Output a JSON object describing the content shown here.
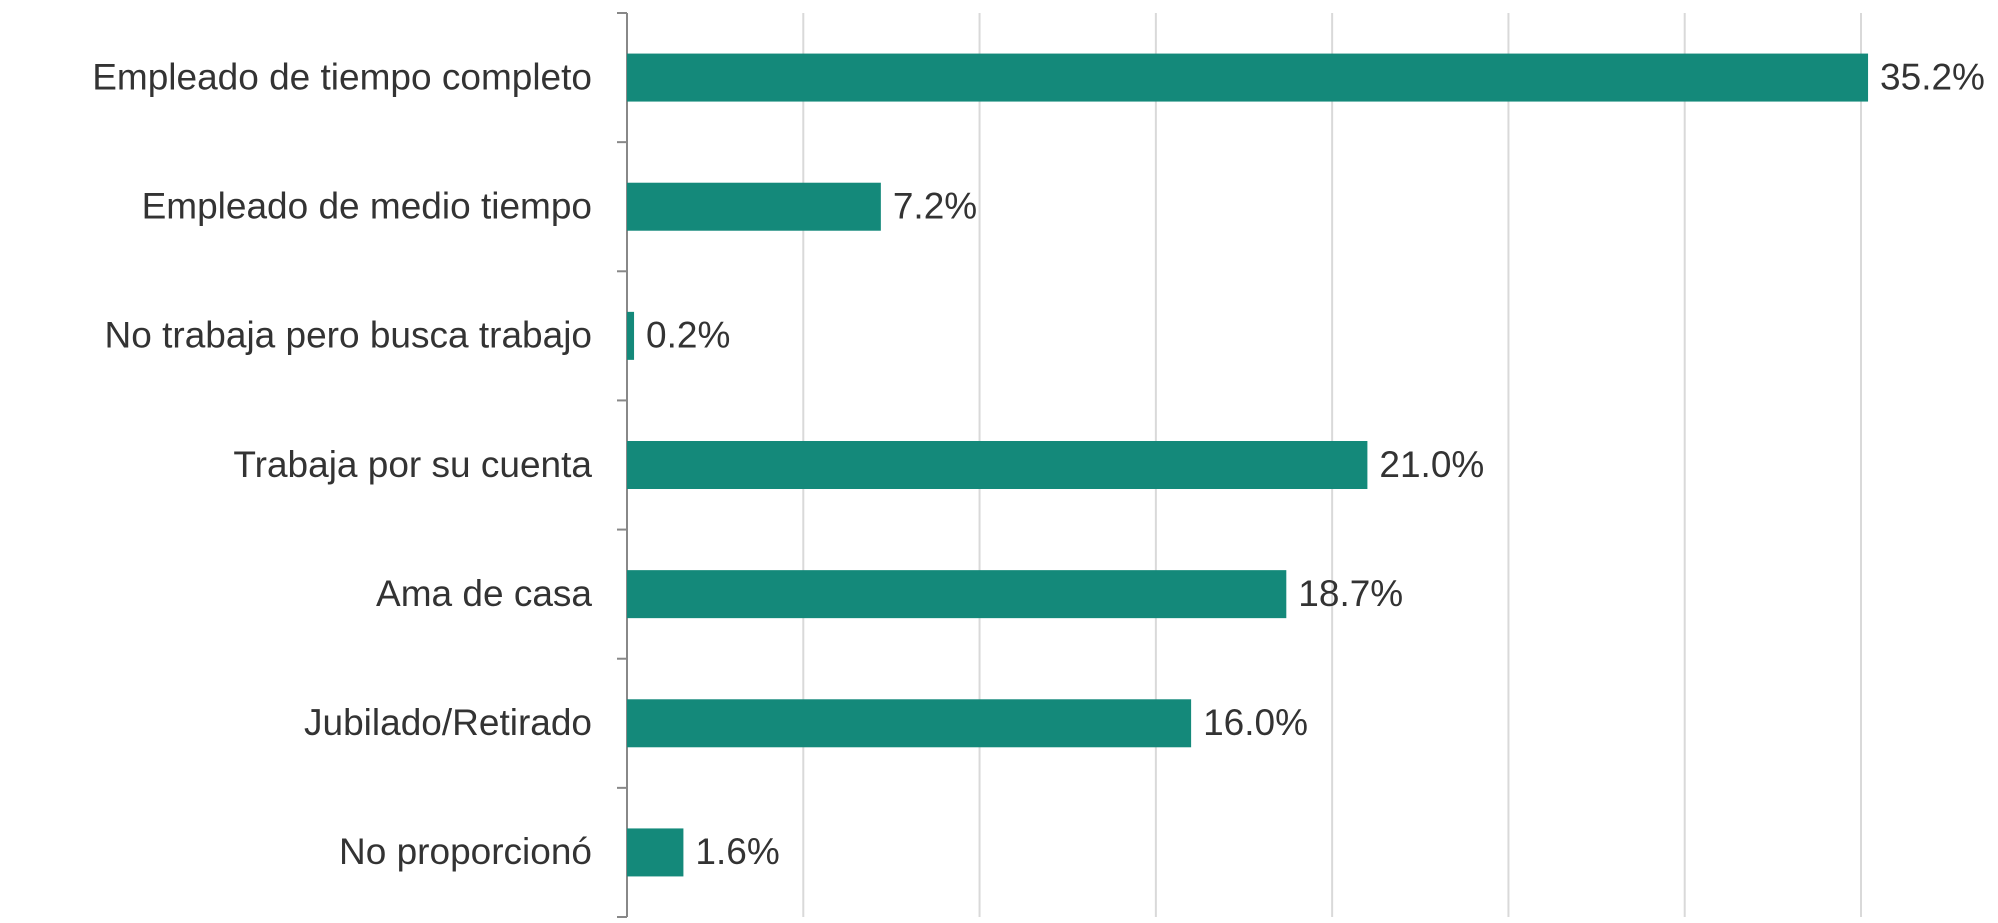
{
  "chart_data": {
    "type": "barh",
    "categories": [
      "Empleado de tiempo completo",
      "Empleado de medio tiempo",
      "No trabaja pero busca trabajo",
      "Trabaja por su cuenta",
      "Ama de casa",
      "Jubilado/Retirado",
      "No proporcionó"
    ],
    "values": [
      35.2,
      7.2,
      0.2,
      21.0,
      18.7,
      16.0,
      1.6
    ],
    "value_labels": [
      "35.2%",
      "7.2%",
      "0.2%",
      "21.0%",
      "18.7%",
      "16.0%",
      "1.6%"
    ],
    "color": "#14897a",
    "xlim": [
      0,
      35
    ],
    "xticks": [
      0,
      5,
      10,
      15,
      20,
      25,
      30,
      35
    ],
    "grid": true
  }
}
